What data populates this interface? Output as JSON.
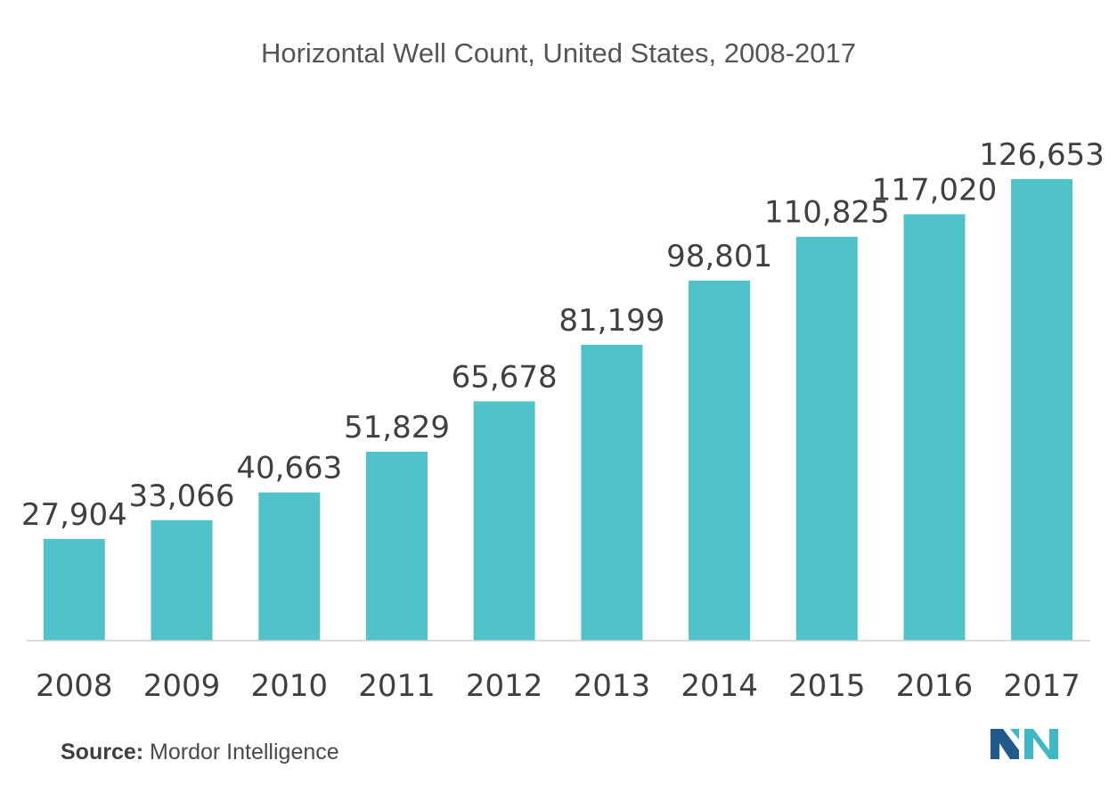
{
  "chart_data": {
    "type": "bar",
    "title": "Horizontal Well Count, United States, 2008-2017",
    "xlabel": "",
    "ylabel": "",
    "categories": [
      "2008",
      "2009",
      "2010",
      "2011",
      "2012",
      "2013",
      "2014",
      "2015",
      "2016",
      "2017"
    ],
    "values": [
      27904,
      33066,
      40663,
      51829,
      65678,
      81199,
      98801,
      110825,
      117020,
      126653
    ],
    "data_labels": [
      "27,904",
      "33,066",
      "40,663",
      "51,829",
      "65,678",
      "81,199",
      "98,801",
      "110,825",
      "117,020",
      "126,653"
    ],
    "ylim": [
      0,
      126653
    ],
    "grid": false,
    "legend": "none",
    "bar_color": "#4fc3c9",
    "baseline_color": "#cfcfcf"
  },
  "source": {
    "label": "Source:",
    "text": "Mordor Intelligence"
  },
  "logo": {
    "icon": "mordor-intelligence-logo-icon",
    "colors": [
      "#1f5a8a",
      "#3fb7c4"
    ]
  }
}
